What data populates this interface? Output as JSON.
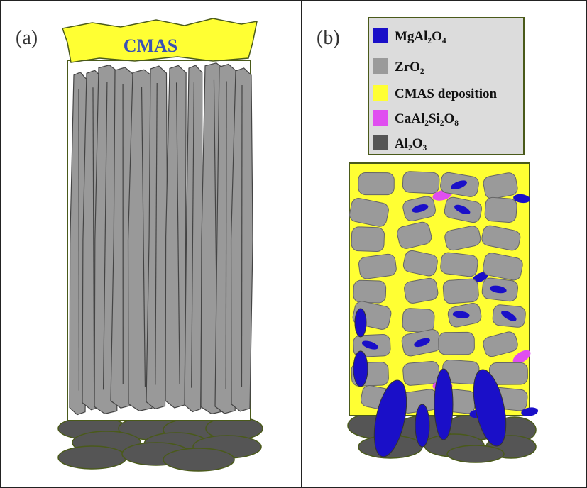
{
  "panel_a": {
    "label": "(a)",
    "layer_label": "CMAS"
  },
  "panel_b": {
    "label": "(b)",
    "legend": [
      {
        "label": "MgAl₂O₄",
        "color": "#1a0fc8"
      },
      {
        "label": "ZrO₂",
        "color": "#9a9a9a"
      },
      {
        "label": "CMAS deposition",
        "color": "#ffff33"
      },
      {
        "label": "CaAl₂Si₂O₈",
        "color": "#e04ef0"
      },
      {
        "label": "Al₂O₃",
        "color": "#555555"
      }
    ]
  }
}
